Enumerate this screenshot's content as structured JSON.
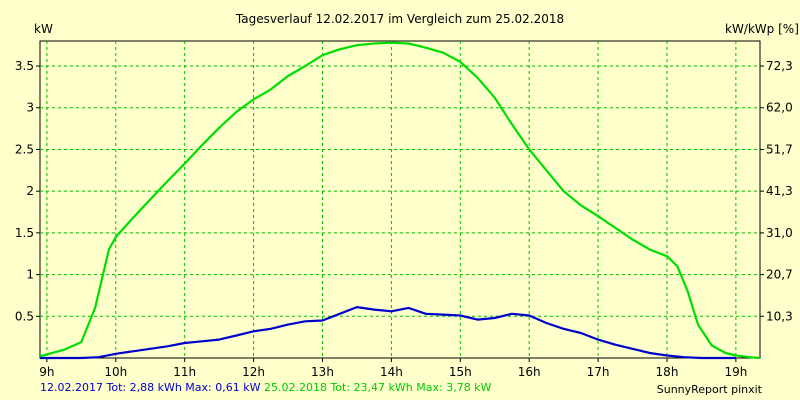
{
  "chart_data": {
    "type": "line",
    "title": "Tagesverlauf 12.02.2017 im Vergleich zum 25.02.2018",
    "ylabel_left": "kW",
    "ylabel_right": "kW/kWp [%]",
    "xlim": [
      8.9,
      19.35
    ],
    "ylim": [
      0,
      3.8
    ],
    "x_ticks": [
      9,
      10,
      11,
      12,
      13,
      14,
      15,
      16,
      17,
      18,
      19
    ],
    "x_tick_labels": [
      "9h",
      "10h",
      "11h",
      "12h",
      "13h",
      "14h",
      "15h",
      "16h",
      "17h",
      "18h",
      "19h"
    ],
    "y_ticks": [
      0.5,
      1,
      1.5,
      2,
      2.5,
      3,
      3.5
    ],
    "y_tick_labels": [
      "0.5",
      "1",
      "1.5",
      "2",
      "2.5",
      "3",
      "3.5"
    ],
    "y2_tick_labels": [
      "10,3",
      "20,7",
      "31,0",
      "41,3",
      "51,7",
      "62,0",
      "72,3"
    ],
    "grid": true,
    "series": [
      {
        "name": "12.02.2017",
        "color": "#0000cc",
        "x": [
          8.9,
          9.5,
          9.75,
          10.0,
          10.25,
          10.5,
          10.75,
          11.0,
          11.25,
          11.5,
          11.75,
          12.0,
          12.25,
          12.5,
          12.75,
          13.0,
          13.25,
          13.5,
          13.75,
          14.0,
          14.25,
          14.5,
          14.75,
          15.0,
          15.25,
          15.5,
          15.75,
          16.0,
          16.25,
          16.5,
          16.75,
          17.0,
          17.25,
          17.5,
          17.75,
          18.0,
          18.25,
          18.5,
          18.75,
          19.0
        ],
        "y": [
          0.0,
          0.0,
          0.01,
          0.05,
          0.08,
          0.11,
          0.14,
          0.18,
          0.2,
          0.22,
          0.27,
          0.32,
          0.35,
          0.4,
          0.44,
          0.45,
          0.53,
          0.61,
          0.58,
          0.56,
          0.6,
          0.53,
          0.52,
          0.51,
          0.46,
          0.48,
          0.53,
          0.51,
          0.42,
          0.35,
          0.3,
          0.22,
          0.16,
          0.11,
          0.06,
          0.03,
          0.01,
          0.0,
          0.0,
          0.0
        ]
      },
      {
        "name": "25.02.2018",
        "color": "#00dd00",
        "x": [
          8.9,
          9.25,
          9.5,
          9.7,
          9.9,
          10.0,
          10.25,
          10.5,
          10.75,
          11.0,
          11.25,
          11.5,
          11.75,
          12.0,
          12.25,
          12.5,
          12.75,
          13.0,
          13.25,
          13.5,
          13.75,
          14.0,
          14.25,
          14.5,
          14.75,
          15.0,
          15.25,
          15.5,
          15.75,
          16.0,
          16.25,
          16.5,
          16.75,
          17.0,
          17.25,
          17.5,
          17.75,
          18.0,
          18.15,
          18.3,
          18.45,
          18.65,
          18.85,
          19.0,
          19.2,
          19.35
        ],
        "y": [
          0.02,
          0.1,
          0.19,
          0.6,
          1.3,
          1.45,
          1.68,
          1.9,
          2.12,
          2.33,
          2.55,
          2.76,
          2.95,
          3.1,
          3.22,
          3.38,
          3.5,
          3.63,
          3.7,
          3.75,
          3.77,
          3.78,
          3.77,
          3.72,
          3.66,
          3.55,
          3.36,
          3.12,
          2.8,
          2.5,
          2.25,
          2.0,
          1.83,
          1.7,
          1.56,
          1.42,
          1.3,
          1.22,
          1.1,
          0.8,
          0.4,
          0.15,
          0.06,
          0.03,
          0.01,
          0.0
        ]
      }
    ]
  },
  "footer": {
    "series1_name": "12.02.2017",
    "series1_stats": "Tot: 2,88 kWh Max: 0,61 kW",
    "series2_name": "25.02.2018",
    "series2_stats": "Tot: 23,47 kWh Max: 3,78 kW",
    "brand": "SunnyReport pinxit"
  }
}
